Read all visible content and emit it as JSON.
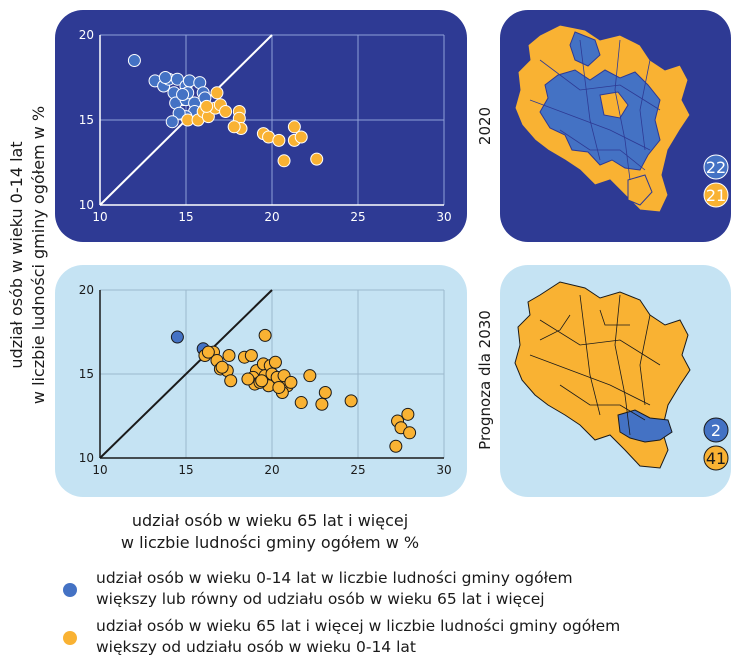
{
  "shared": {
    "ylabel_line1": "udział osób w wieku 0-14 lat",
    "ylabel_line2": "w liczbie ludności gminy ogółem w %",
    "xlabel_line1": "udział osób w wieku 65 lat i więcej",
    "xlabel_line2": "w liczbie ludności gminy ogółem w %"
  },
  "map_2020": {
    "label": "2020",
    "blue_count": "22",
    "orange_count": "21"
  },
  "map_2030": {
    "label": "Prognoza dla 2030",
    "blue_count": "2",
    "orange_count": "41"
  },
  "legend": {
    "blue_line1": "udział osób w wieku 0-14 lat w liczbie ludności gminy ogółem",
    "blue_line2": "większy lub równy od udziału osób w wieku 65 lat i więcej",
    "orange_line1": "udział osób w wieku 65 lat i więcej w liczbie ludności gminy ogółem",
    "orange_line2": "większy od udziału osób w wieku 0-14 lat"
  },
  "colors": {
    "blue": "#4472C4",
    "orange": "#F9B233",
    "navy": "#2E3A94",
    "light_bg": "#C5E3F3"
  },
  "chart_data": [
    {
      "type": "scatter",
      "title": "2020",
      "xlabel": "udział osób w wieku 65 lat i więcej w liczbie ludności gminy ogółem w %",
      "ylabel": "udział osób w wieku 0-14 lat w liczbie ludności gminy ogółem w %",
      "xlim": [
        10,
        30
      ],
      "ylim": [
        10,
        20
      ],
      "xticks": [
        "10",
        "15",
        "20",
        "25",
        "30"
      ],
      "yticks": [
        "10",
        "15",
        "20"
      ],
      "reference_line": "y = x",
      "grid": true,
      "series": [
        {
          "name": "blue",
          "color": "#4472C4",
          "points": [
            [
              12.0,
              18.5
            ],
            [
              13.2,
              17.3
            ],
            [
              13.7,
              17.0
            ],
            [
              14.0,
              17.4
            ],
            [
              14.5,
              17.4
            ],
            [
              13.8,
              17.5
            ],
            [
              15.0,
              17.0
            ],
            [
              15.2,
              17.3
            ],
            [
              14.3,
              16.6
            ],
            [
              14.8,
              16.2
            ],
            [
              14.4,
              16.0
            ],
            [
              15.0,
              16.2
            ],
            [
              15.5,
              16.0
            ],
            [
              15.8,
              17.2
            ],
            [
              16.0,
              16.6
            ],
            [
              15.5,
              15.5
            ],
            [
              15.0,
              15.2
            ],
            [
              14.6,
              15.4
            ],
            [
              14.2,
              14.9
            ],
            [
              15.1,
              16.6
            ],
            [
              16.1,
              16.3
            ],
            [
              14.8,
              16.5
            ]
          ]
        },
        {
          "name": "orange",
          "color": "#F9B233",
          "points": [
            [
              15.1,
              15.0
            ],
            [
              15.7,
              15.0
            ],
            [
              16.0,
              15.5
            ],
            [
              16.3,
              15.2
            ],
            [
              16.7,
              15.7
            ],
            [
              17.0,
              15.9
            ],
            [
              16.2,
              15.8
            ],
            [
              17.3,
              15.5
            ],
            [
              18.1,
              15.5
            ],
            [
              18.1,
              15.1
            ],
            [
              18.2,
              14.5
            ],
            [
              17.8,
              14.6
            ],
            [
              19.5,
              14.2
            ],
            [
              19.8,
              14.0
            ],
            [
              20.4,
              13.8
            ],
            [
              21.3,
              14.6
            ],
            [
              21.3,
              13.8
            ],
            [
              21.7,
              14.0
            ],
            [
              20.7,
              12.6
            ],
            [
              22.6,
              12.7
            ],
            [
              16.8,
              16.6
            ]
          ]
        }
      ]
    },
    {
      "type": "scatter",
      "title": "Prognoza dla 2030",
      "xlabel": "udział osób w wieku 65 lat i więcej w liczbie ludności gminy ogółem w %",
      "ylabel": "udział osób w wieku 0-14 lat w liczbie ludności gminy ogółem w %",
      "xlim": [
        10,
        30
      ],
      "ylim": [
        10,
        20
      ],
      "xticks": [
        "10",
        "15",
        "20",
        "25",
        "30"
      ],
      "yticks": [
        "10",
        "15",
        "20"
      ],
      "reference_line": "y = x",
      "grid": true,
      "series": [
        {
          "name": "blue",
          "color": "#4472C4",
          "points": [
            [
              14.5,
              17.2
            ],
            [
              16.0,
              16.5
            ]
          ]
        },
        {
          "name": "orange",
          "color": "#F9B233",
          "points": [
            [
              16.1,
              16.1
            ],
            [
              16.6,
              16.3
            ],
            [
              16.8,
              15.8
            ],
            [
              17.0,
              15.3
            ],
            [
              17.5,
              16.1
            ],
            [
              17.4,
              15.2
            ],
            [
              17.6,
              14.6
            ],
            [
              18.4,
              16.0
            ],
            [
              18.8,
              16.1
            ],
            [
              19.1,
              15.2
            ],
            [
              18.9,
              14.8
            ],
            [
              19.0,
              14.4
            ],
            [
              19.5,
              15.6
            ],
            [
              19.6,
              14.9
            ],
            [
              19.8,
              14.3
            ],
            [
              19.6,
              17.3
            ],
            [
              19.9,
              15.5
            ],
            [
              20.0,
              15.0
            ],
            [
              20.5,
              14.4
            ],
            [
              20.9,
              14.3
            ],
            [
              20.6,
              13.9
            ],
            [
              20.3,
              14.8
            ],
            [
              20.7,
              14.9
            ],
            [
              21.1,
              14.5
            ],
            [
              21.7,
              13.3
            ],
            [
              22.2,
              14.9
            ],
            [
              22.9,
              13.2
            ],
            [
              23.1,
              13.9
            ],
            [
              24.6,
              13.4
            ],
            [
              27.3,
              12.2
            ],
            [
              27.5,
              11.8
            ],
            [
              27.9,
              12.6
            ],
            [
              28.0,
              11.5
            ],
            [
              27.2,
              10.7
            ],
            [
              19.3,
              14.5
            ],
            [
              20.2,
              15.7
            ],
            [
              16.3,
              16.3
            ],
            [
              17.1,
              15.4
            ],
            [
              18.6,
              14.7
            ],
            [
              19.4,
              14.6
            ],
            [
              20.4,
              14.2
            ]
          ]
        }
      ]
    }
  ]
}
